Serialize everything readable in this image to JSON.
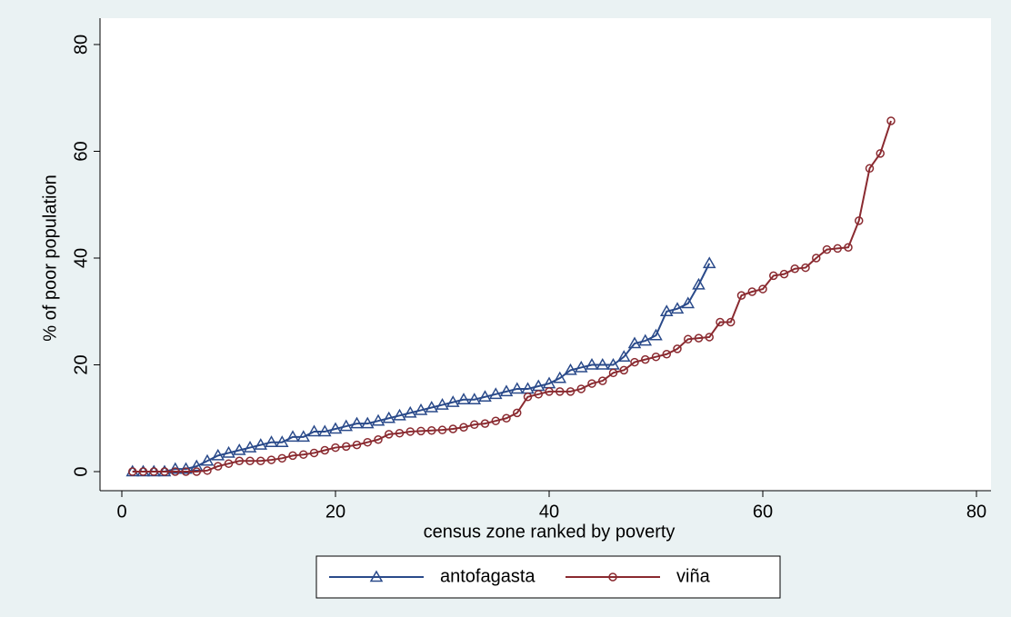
{
  "chart_data": {
    "type": "line",
    "x_label": "census zone ranked by poverty",
    "y_label": "% of poor population",
    "xlim": [
      0,
      80
    ],
    "xticks": [
      0,
      20,
      40,
      60,
      80
    ],
    "ylim": [
      0,
      80
    ],
    "yticks": [
      0,
      20,
      40,
      60,
      80
    ],
    "grid": false,
    "legend": "bottom",
    "series": [
      {
        "name": "antofagasta",
        "color": "#2a4a8a",
        "marker": "triangle",
        "x": [
          1,
          2,
          3,
          4,
          5,
          6,
          7,
          8,
          9,
          10,
          11,
          12,
          13,
          14,
          15,
          16,
          17,
          18,
          19,
          20,
          21,
          22,
          23,
          24,
          25,
          26,
          27,
          28,
          29,
          30,
          31,
          32,
          33,
          34,
          35,
          36,
          37,
          38,
          39,
          40,
          41,
          42,
          43,
          44,
          45,
          46,
          47,
          48,
          49,
          50,
          51,
          52,
          53,
          54,
          55
        ],
        "values": [
          0,
          0,
          0,
          0,
          0.5,
          0.5,
          1,
          2,
          3,
          3.5,
          4,
          4.5,
          5,
          5.5,
          5.5,
          6.5,
          6.5,
          7.5,
          7.5,
          8,
          8.5,
          9,
          9,
          9.5,
          10,
          10.5,
          11,
          11.5,
          12,
          12.5,
          13,
          13.5,
          13.5,
          14,
          14.5,
          15,
          15.5,
          15.5,
          16,
          16.5,
          17.5,
          19,
          19.5,
          20,
          20,
          20,
          21.5,
          24,
          24.5,
          25.5,
          30,
          30.5,
          31.5,
          35,
          39
        ]
      },
      {
        "name": "viña",
        "color": "#8a2a30",
        "marker": "circle",
        "x": [
          1,
          2,
          3,
          4,
          5,
          6,
          7,
          8,
          9,
          10,
          11,
          12,
          13,
          14,
          15,
          16,
          17,
          18,
          19,
          20,
          21,
          22,
          23,
          24,
          25,
          26,
          27,
          28,
          29,
          30,
          31,
          32,
          33,
          34,
          35,
          36,
          37,
          38,
          39,
          40,
          41,
          42,
          43,
          44,
          45,
          46,
          47,
          48,
          49,
          50,
          51,
          52,
          53,
          54,
          55,
          56,
          57,
          58,
          59,
          60,
          61,
          62,
          63,
          64,
          65,
          66,
          67,
          68,
          69,
          70,
          71,
          72
        ],
        "values": [
          0,
          0,
          0,
          0,
          0,
          0,
          0,
          0.2,
          1,
          1.5,
          2,
          2,
          2,
          2.2,
          2.5,
          3,
          3.2,
          3.5,
          4,
          4.5,
          4.7,
          5,
          5.5,
          6,
          7,
          7.2,
          7.5,
          7.6,
          7.7,
          7.8,
          8,
          8.3,
          8.8,
          9,
          9.5,
          10,
          11,
          14,
          14.5,
          15,
          15,
          15,
          15.5,
          16.5,
          17,
          18.5,
          19,
          20.5,
          21,
          21.5,
          22,
          23,
          24.8,
          25,
          25.2,
          28,
          28,
          33,
          33.7,
          34.2,
          36.7,
          37,
          38,
          38.2,
          40,
          41.6,
          41.8,
          42,
          47,
          56.8,
          59.6,
          65.7
        ]
      }
    ]
  }
}
